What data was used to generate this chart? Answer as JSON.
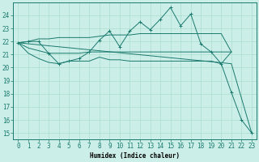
{
  "xlabel": "Humidex (Indice chaleur)",
  "ylabel": "",
  "background_color": "#cceee8",
  "grid_color": "#aaddcc",
  "line_color": "#1a7a6e",
  "x_vals": [
    0,
    1,
    2,
    3,
    4,
    5,
    6,
    7,
    8,
    9,
    10,
    11,
    12,
    13,
    14,
    15,
    16,
    17,
    18,
    19,
    20,
    21,
    22,
    23
  ],
  "humidex_curve": [
    21.9,
    22.0,
    22.0,
    21.1,
    20.3,
    20.5,
    20.7,
    21.2,
    22.1,
    22.8,
    21.6,
    22.8,
    23.5,
    22.9,
    23.7,
    24.6,
    23.2,
    24.1,
    21.8,
    21.2,
    20.3,
    18.1,
    16.0,
    15.0
  ],
  "upper_band": [
    21.9,
    22.0,
    22.2,
    22.2,
    22.3,
    22.3,
    22.3,
    22.3,
    22.4,
    22.5,
    22.5,
    22.5,
    22.6,
    22.6,
    22.6,
    22.6,
    22.6,
    22.6,
    22.6,
    22.6,
    22.6,
    21.2,
    null,
    null
  ],
  "mean_line": [
    21.9,
    21.5,
    21.3,
    21.1,
    21.1,
    21.1,
    21.1,
    21.2,
    21.2,
    21.2,
    21.2,
    21.2,
    21.2,
    21.2,
    21.2,
    21.2,
    21.2,
    21.2,
    21.2,
    21.2,
    21.2,
    21.2,
    null,
    null
  ],
  "lower_band": [
    21.9,
    21.1,
    20.7,
    20.4,
    20.3,
    20.5,
    20.5,
    20.5,
    20.8,
    20.6,
    20.6,
    20.5,
    20.5,
    20.5,
    20.5,
    20.5,
    20.5,
    20.5,
    20.5,
    20.5,
    20.3,
    21.2,
    null,
    null
  ],
  "diagonal_line_x": [
    0,
    21,
    23
  ],
  "diagonal_line_y": [
    21.9,
    20.3,
    15.0
  ],
  "xlim": [
    -0.5,
    23.5
  ],
  "ylim": [
    14.5,
    25.0
  ],
  "yticks": [
    15,
    16,
    17,
    18,
    19,
    20,
    21,
    22,
    23,
    24
  ],
  "xticks": [
    0,
    1,
    2,
    3,
    4,
    5,
    6,
    7,
    8,
    9,
    10,
    11,
    12,
    13,
    14,
    15,
    16,
    17,
    18,
    19,
    20,
    21,
    22,
    23
  ],
  "xlabel_fontsize": 5.5,
  "tick_fontsize": 5.5
}
